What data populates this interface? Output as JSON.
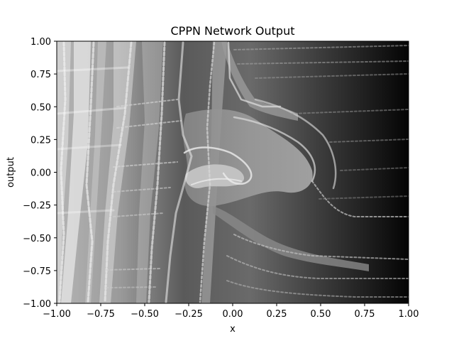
{
  "chart_data": {
    "type": "heatmap",
    "title": "CPPN Network Output",
    "xlabel": "x",
    "ylabel": "output",
    "xlim": [
      -1.0,
      1.0
    ],
    "ylim": [
      -1.0,
      1.0
    ],
    "xticks": [
      "−1.00",
      "−0.75",
      "−0.50",
      "−0.25",
      "0.00",
      "0.25",
      "0.50",
      "0.75",
      "1.00"
    ],
    "yticks": [
      "1.00",
      "0.75",
      "0.50",
      "0.25",
      "0.00",
      "−0.25",
      "−0.50",
      "−0.75",
      "−1.00"
    ],
    "colormap": "gray",
    "grid": false,
    "legend": "none"
  }
}
